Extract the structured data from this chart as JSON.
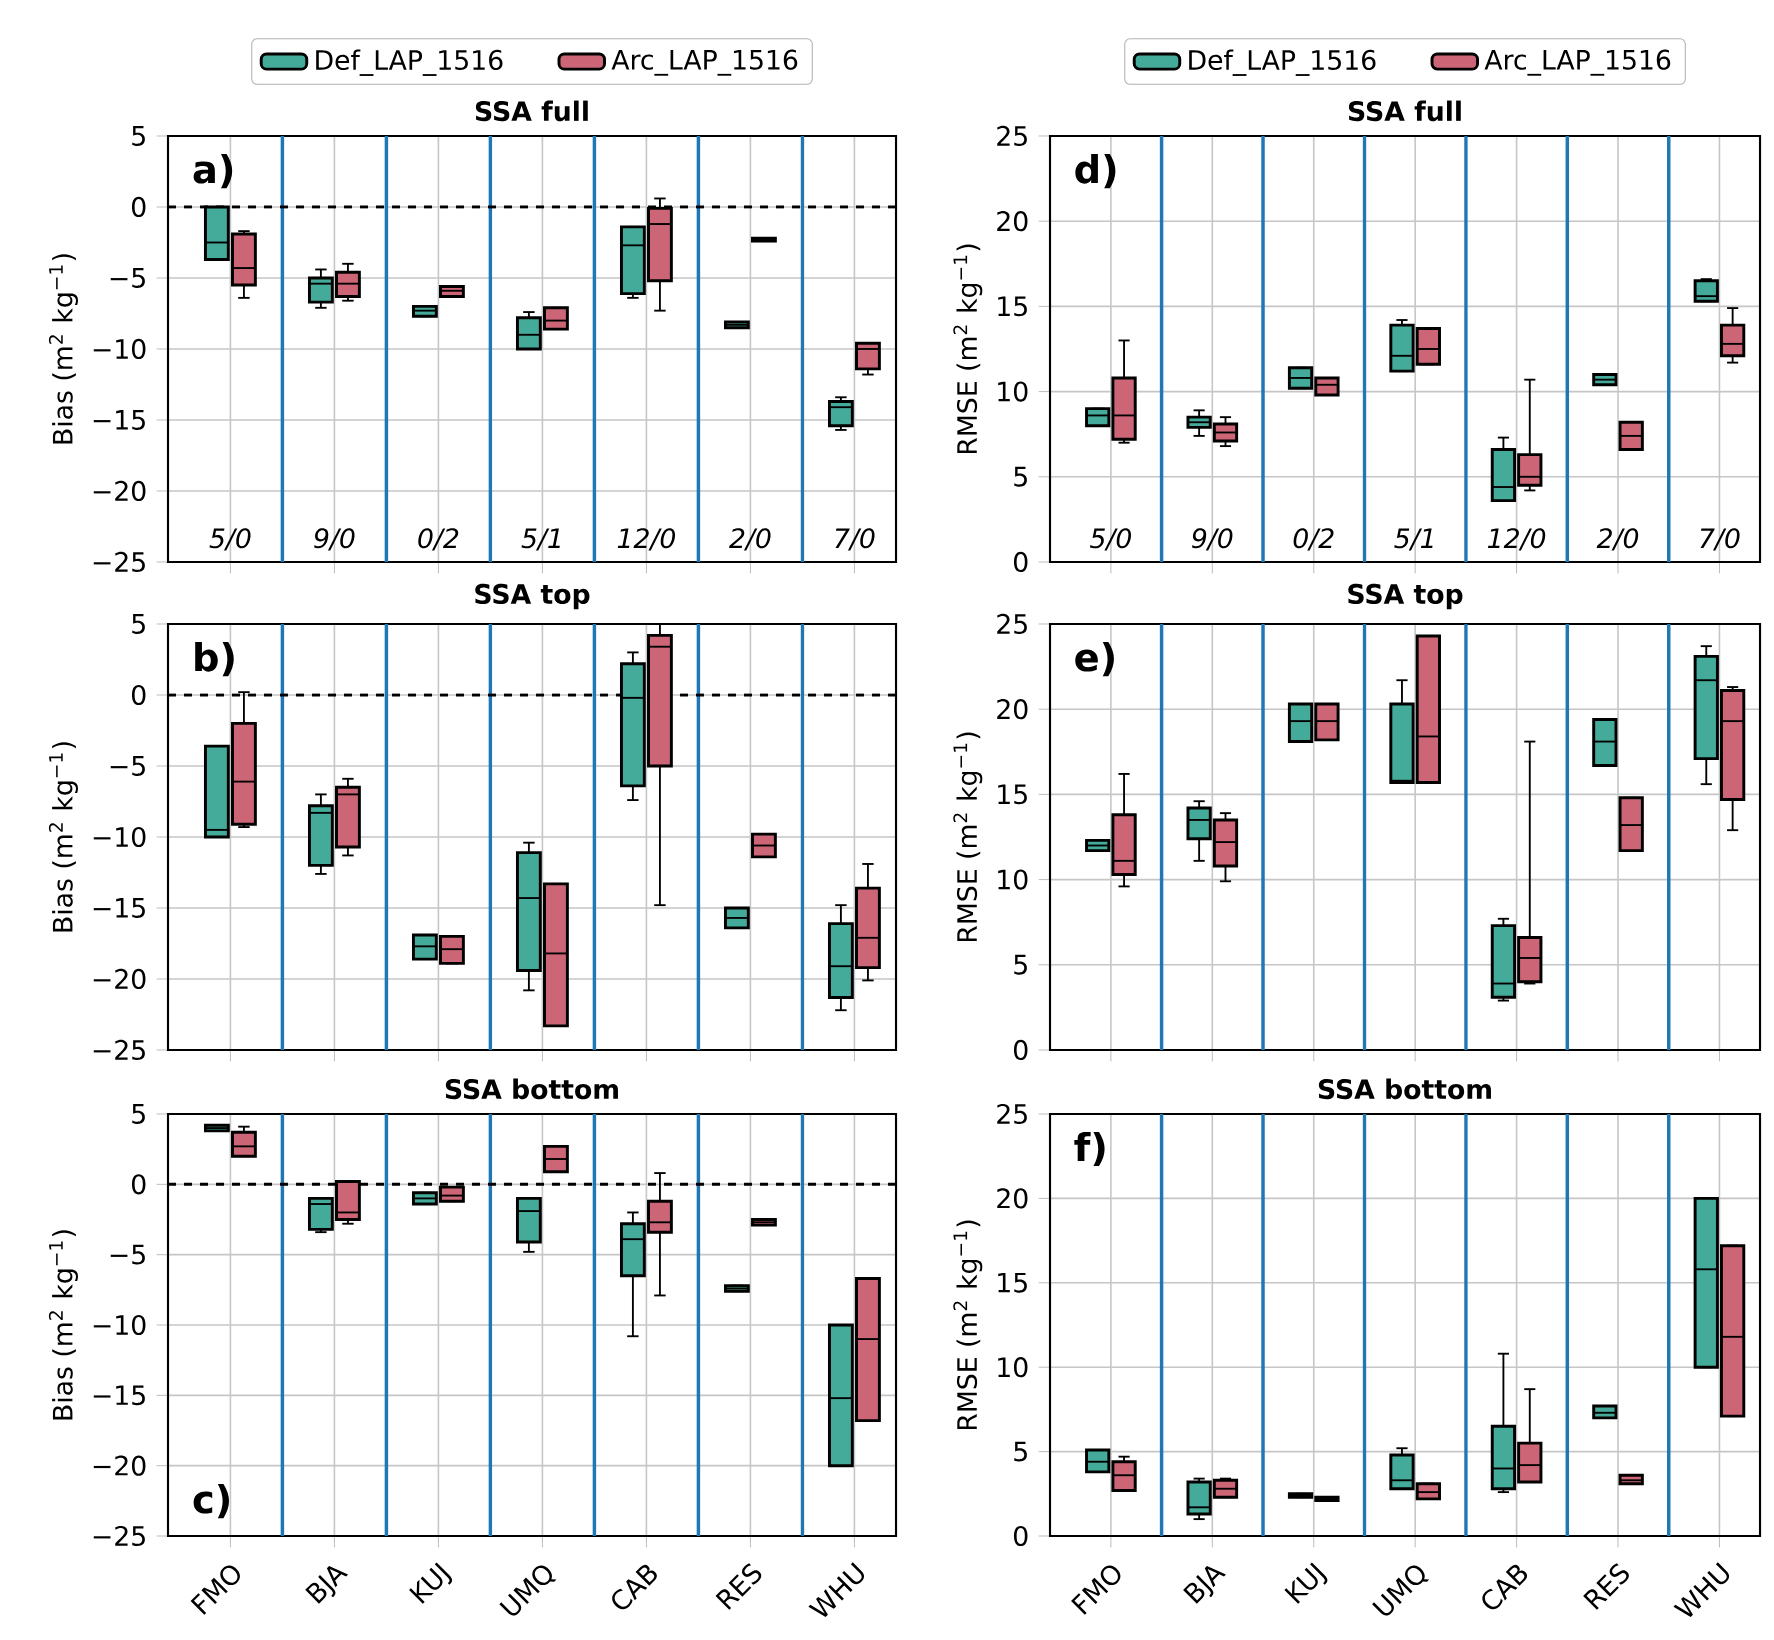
{
  "chart_data": [
    {
      "type": "box",
      "title": "SSA full",
      "ylabel": "Bias (m$^{2}$ kg$^{−1}$)",
      "categories": [
        null,
        null,
        null,
        null,
        null,
        null,
        null
      ],
      "ylim": [
        -25,
        5
      ],
      "yticks": [
        {
          "value": -25,
          "label": "−25"
        },
        {
          "value": -20,
          "label": "−20"
        },
        {
          "value": -15,
          "label": "−15"
        },
        {
          "value": -10,
          "label": "−10"
        },
        {
          "value": -5,
          "label": "−5"
        },
        0,
        5
      ],
      "grid": true,
      "legend": "top",
      "tick_labels": "y",
      "series": [
        {
          "name": "Def_LAP_1516",
          "color": "#44aa99",
          "boxes": [
            {
              "low": -3.7,
              "q1": -3.7,
              "median": -2.5,
              "q3": 0,
              "high": 0
            },
            {
              "low": -7.1,
              "q1": -6.7,
              "median": -5.4,
              "q3": -5.0,
              "high": -4.4
            },
            {
              "low": -7.7,
              "q1": -7.7,
              "median": -7.3,
              "q3": -7.0,
              "high": -7.0
            },
            {
              "low": -10.0,
              "q1": -10.0,
              "median": -9.0,
              "q3": -7.8,
              "high": -7.4
            },
            {
              "low": -6.4,
              "q1": -6.1,
              "median": -2.7,
              "q3": -1.4,
              "high": -1.4
            },
            {
              "low": -8.5,
              "q1": -8.5,
              "median": -8.3,
              "q3": -8.1,
              "high": -8.1
            },
            {
              "low": -15.7,
              "q1": -15.4,
              "median": -14.1,
              "q3": -13.7,
              "high": -13.4
            }
          ]
        },
        {
          "name": "Arc_LAP_1516",
          "color": "#cc6677",
          "boxes": [
            {
              "low": -6.4,
              "q1": -5.5,
              "median": -4.3,
              "q3": -1.9,
              "high": -1.7
            },
            {
              "low": -6.6,
              "q1": -6.3,
              "median": -5.4,
              "q3": -4.6,
              "high": -4.0
            },
            {
              "low": -6.3,
              "q1": -6.3,
              "median": -5.9,
              "q3": -5.6,
              "high": -5.6
            },
            {
              "low": -8.6,
              "q1": -8.6,
              "median": -8.0,
              "q3": -7.1,
              "high": -7.1
            },
            {
              "low": -7.3,
              "q1": -5.2,
              "median": -1.2,
              "q3": -0.1,
              "high": 0.6
            },
            {
              "low": -2.4,
              "q1": -2.4,
              "median": -2.3,
              "q3": -2.2,
              "high": -2.2
            },
            {
              "low": -11.8,
              "q1": -11.4,
              "median": -10.0,
              "q3": -9.6,
              "high": -9.6
            }
          ]
        }
      ],
      "ref_lines": [
        {
          "axis": "y",
          "value": 0,
          "color": "#000000",
          "line_style": "dashed"
        }
      ],
      "annotations": [
        "a)",
        "5/0",
        "9/0",
        "0/2",
        "5/1",
        "12/0",
        "2/0",
        "7/0"
      ]
    },
    {
      "type": "box",
      "title": "SSA full",
      "ylabel": "RMSE (m$^{2}$ kg$^{−1}$)",
      "categories": [
        null,
        null,
        null,
        null,
        null,
        null,
        null
      ],
      "ylim": [
        0,
        25
      ],
      "yticks": [
        0,
        5,
        10,
        15,
        20,
        25
      ],
      "grid": true,
      "legend": "top",
      "tick_labels": "y",
      "series": [
        {
          "name": "Def_LAP_1516",
          "color": "#44aa99",
          "boxes": [
            {
              "low": 8.0,
              "q1": 8.0,
              "median": 8.6,
              "q3": 9.0,
              "high": 9.0
            },
            {
              "low": 7.4,
              "q1": 7.9,
              "median": 8.2,
              "q3": 8.5,
              "high": 8.9
            },
            {
              "low": 10.2,
              "q1": 10.2,
              "median": 10.8,
              "q3": 11.4,
              "high": 11.4
            },
            {
              "low": 11.2,
              "q1": 11.2,
              "median": 12.1,
              "q3": 13.9,
              "high": 14.2
            },
            {
              "low": 3.6,
              "q1": 3.6,
              "median": 4.4,
              "q3": 6.6,
              "high": 7.3
            },
            {
              "low": 10.4,
              "q1": 10.4,
              "median": 10.7,
              "q3": 11.0,
              "high": 11.0
            },
            {
              "low": 15.3,
              "q1": 15.3,
              "median": 15.6,
              "q3": 16.5,
              "high": 16.6
            }
          ]
        },
        {
          "name": "Arc_LAP_1516",
          "color": "#cc6677",
          "boxes": [
            {
              "low": 7.0,
              "q1": 7.2,
              "median": 8.6,
              "q3": 10.8,
              "high": 13.0
            },
            {
              "low": 6.8,
              "q1": 7.1,
              "median": 7.6,
              "q3": 8.1,
              "high": 8.5
            },
            {
              "low": 9.8,
              "q1": 9.8,
              "median": 10.4,
              "q3": 10.8,
              "high": 10.8
            },
            {
              "low": 11.6,
              "q1": 11.6,
              "median": 12.5,
              "q3": 13.7,
              "high": 13.7
            },
            {
              "low": 4.2,
              "q1": 4.5,
              "median": 5.0,
              "q3": 6.3,
              "high": 10.7
            },
            {
              "low": 6.6,
              "q1": 6.6,
              "median": 7.4,
              "q3": 8.2,
              "high": 8.2
            },
            {
              "low": 11.7,
              "q1": 12.1,
              "median": 12.8,
              "q3": 13.9,
              "high": 14.9
            }
          ]
        }
      ],
      "annotations": [
        "d)",
        "5/0",
        "9/0",
        "0/2",
        "5/1",
        "12/0",
        "2/0",
        "7/0"
      ]
    },
    {
      "type": "box",
      "title": "SSA top",
      "ylabel": "Bias (m$^{2}$ kg$^{−1}$)",
      "categories": [
        null,
        null,
        null,
        null,
        null,
        null,
        null
      ],
      "ylim": [
        -25,
        5
      ],
      "yticks": [
        {
          "value": -25,
          "label": "−25"
        },
        {
          "value": -20,
          "label": "−20"
        },
        {
          "value": -15,
          "label": "−15"
        },
        {
          "value": -10,
          "label": "−10"
        },
        {
          "value": -5,
          "label": "−5"
        },
        0,
        5
      ],
      "grid": true,
      "tick_labels": "y",
      "series": [
        {
          "color": "#44aa99",
          "boxes": [
            {
              "low": -10.0,
              "q1": -10.0,
              "median": -9.5,
              "q3": -3.6,
              "high": -3.6
            },
            {
              "low": -12.6,
              "q1": -12.0,
              "median": -8.3,
              "q3": -7.8,
              "high": -7.0
            },
            {
              "low": -18.6,
              "q1": -18.6,
              "median": -17.7,
              "q3": -16.9,
              "high": -16.9
            },
            {
              "low": -20.8,
              "q1": -19.4,
              "median": -14.3,
              "q3": -11.1,
              "high": -10.4
            },
            {
              "low": -7.4,
              "q1": -6.4,
              "median": -0.2,
              "q3": 2.2,
              "high": 3.0
            },
            {
              "low": -16.4,
              "q1": -16.4,
              "median": -15.7,
              "q3": -15.0,
              "high": -15.0
            },
            {
              "low": -22.2,
              "q1": -21.3,
              "median": -19.1,
              "q3": -16.1,
              "high": -14.8
            }
          ]
        },
        {
          "color": "#cc6677",
          "boxes": [
            {
              "low": -9.3,
              "q1": -9.1,
              "median": -6.1,
              "q3": -2.0,
              "high": 0.2
            },
            {
              "low": -11.3,
              "q1": -10.7,
              "median": -7.0,
              "q3": -6.5,
              "high": -5.9
            },
            {
              "low": -18.9,
              "q1": -18.9,
              "median": -17.9,
              "q3": -17.0,
              "high": -17.0
            },
            {
              "low": -23.3,
              "q1": -23.3,
              "median": -18.2,
              "q3": -13.3,
              "high": -13.3
            },
            {
              "low": -14.8,
              "q1": -5.0,
              "median": 3.4,
              "q3": 4.2,
              "high": 5.0
            },
            {
              "low": -11.4,
              "q1": -11.4,
              "median": -10.6,
              "q3": -9.8,
              "high": -9.8
            },
            {
              "low": -20.1,
              "q1": -19.2,
              "median": -17.1,
              "q3": -13.6,
              "high": -11.9
            }
          ]
        }
      ],
      "ref_lines": [
        {
          "axis": "y",
          "value": 0,
          "color": "#000000",
          "line_style": "dashed"
        }
      ],
      "annotations": [
        "b)"
      ]
    },
    {
      "type": "box",
      "title": "SSA top",
      "ylabel": "RMSE (m$^{2}$ kg$^{−1}$)",
      "categories": [
        null,
        null,
        null,
        null,
        null,
        null,
        null
      ],
      "ylim": [
        0,
        25
      ],
      "yticks": [
        0,
        5,
        10,
        15,
        20,
        25
      ],
      "grid": true,
      "tick_labels": "y",
      "series": [
        {
          "color": "#44aa99",
          "boxes": [
            {
              "low": 11.7,
              "q1": 11.7,
              "median": 12.0,
              "q3": 12.3,
              "high": 12.3
            },
            {
              "low": 11.1,
              "q1": 12.4,
              "median": 13.5,
              "q3": 14.2,
              "high": 14.6
            },
            {
              "low": 18.1,
              "q1": 18.1,
              "median": 19.3,
              "q3": 20.3,
              "high": 20.3
            },
            {
              "low": 15.7,
              "q1": 15.7,
              "median": 15.8,
              "q3": 20.3,
              "high": 21.7
            },
            {
              "low": 2.9,
              "q1": 3.1,
              "median": 3.9,
              "q3": 7.3,
              "high": 7.7
            },
            {
              "low": 16.7,
              "q1": 16.7,
              "median": 18.1,
              "q3": 19.4,
              "high": 19.4
            },
            {
              "low": 15.6,
              "q1": 17.1,
              "median": 21.7,
              "q3": 23.1,
              "high": 23.7
            }
          ]
        },
        {
          "color": "#cc6677",
          "boxes": [
            {
              "low": 9.6,
              "q1": 10.3,
              "median": 11.1,
              "q3": 13.8,
              "high": 16.2
            },
            {
              "low": 9.9,
              "q1": 10.8,
              "median": 12.2,
              "q3": 13.5,
              "high": 13.9
            },
            {
              "low": 18.2,
              "q1": 18.2,
              "median": 19.3,
              "q3": 20.3,
              "high": 20.3
            },
            {
              "low": 15.7,
              "q1": 15.7,
              "median": 18.4,
              "q3": 24.3,
              "high": 24.3
            },
            {
              "low": 3.9,
              "q1": 4.0,
              "median": 5.4,
              "q3": 6.6,
              "high": 18.1
            },
            {
              "low": 11.7,
              "q1": 11.7,
              "median": 13.2,
              "q3": 14.8,
              "high": 14.8
            },
            {
              "low": 12.9,
              "q1": 14.7,
              "median": 19.3,
              "q3": 21.1,
              "high": 21.3
            }
          ]
        }
      ],
      "annotations": [
        "e)"
      ]
    },
    {
      "type": "box",
      "title": "SSA bottom",
      "ylabel": "Bias (m$^{2}$ kg$^{−1}$)",
      "categories": [
        "FMO",
        "BJA",
        "KUJ",
        "UMQ",
        "CAB",
        "RES",
        "WHU"
      ],
      "ylim": [
        -25,
        5
      ],
      "yticks": [
        {
          "value": -25,
          "label": "−25"
        },
        {
          "value": -20,
          "label": "−20"
        },
        {
          "value": -15,
          "label": "−15"
        },
        {
          "value": -10,
          "label": "−10"
        },
        {
          "value": -5,
          "label": "−5"
        },
        0,
        5
      ],
      "grid": true,
      "series": [
        {
          "color": "#44aa99",
          "boxes": [
            {
              "low": 3.8,
              "q1": 3.8,
              "median": 4.0,
              "q3": 4.2,
              "high": 4.2
            },
            {
              "low": -3.4,
              "q1": -3.2,
              "median": -1.4,
              "q3": -1.0,
              "high": -1.0
            },
            {
              "low": -1.4,
              "q1": -1.4,
              "median": -1.0,
              "q3": -0.6,
              "high": -0.6
            },
            {
              "low": -4.8,
              "q1": -4.1,
              "median": -1.9,
              "q3": -1.0,
              "high": -1.0
            },
            {
              "low": -10.8,
              "q1": -6.5,
              "median": -3.9,
              "q3": -2.8,
              "high": -2.0
            },
            {
              "low": -7.6,
              "q1": -7.6,
              "median": -7.4,
              "q3": -7.2,
              "high": -7.2
            },
            {
              "low": -20.0,
              "q1": -20.0,
              "median": -15.2,
              "q3": -10.0,
              "high": -10.0
            }
          ]
        },
        {
          "color": "#cc6677",
          "boxes": [
            {
              "low": 2.0,
              "q1": 2.0,
              "median": 2.7,
              "q3": 3.7,
              "high": 4.1
            },
            {
              "low": -2.8,
              "q1": -2.5,
              "median": -2.0,
              "q3": 0.2,
              "high": 0.2
            },
            {
              "low": -1.2,
              "q1": -1.2,
              "median": -0.8,
              "q3": -0.2,
              "high": -0.2
            },
            {
              "low": 0.9,
              "q1": 0.9,
              "median": 1.8,
              "q3": 2.7,
              "high": 2.7
            },
            {
              "low": -7.9,
              "q1": -3.4,
              "median": -2.7,
              "q3": -1.2,
              "high": 0.8
            },
            {
              "low": -2.9,
              "q1": -2.9,
              "median": -2.7,
              "q3": -2.5,
              "high": -2.5
            },
            {
              "low": -16.8,
              "q1": -16.8,
              "median": -11.0,
              "q3": -6.7,
              "high": -6.7
            }
          ]
        }
      ],
      "ref_lines": [
        {
          "axis": "y",
          "value": 0,
          "color": "#000000",
          "line_style": "dashed"
        }
      ],
      "annotations": [
        "c)"
      ]
    },
    {
      "type": "box",
      "title": "SSA bottom",
      "ylabel": "RMSE (m$^{2}$ kg$^{−1}$)",
      "categories": [
        "FMO",
        "BJA",
        "KUJ",
        "UMQ",
        "CAB",
        "RES",
        "WHU"
      ],
      "ylim": [
        0,
        25
      ],
      "yticks": [
        0,
        5,
        10,
        15,
        20,
        25
      ],
      "grid": true,
      "series": [
        {
          "color": "#44aa99",
          "boxes": [
            {
              "low": 3.8,
              "q1": 3.8,
              "median": 4.4,
              "q3": 5.1,
              "high": 5.1
            },
            {
              "low": 1.0,
              "q1": 1.3,
              "median": 1.7,
              "q3": 3.2,
              "high": 3.4
            },
            {
              "low": 2.3,
              "q1": 2.3,
              "median": 2.4,
              "q3": 2.5,
              "high": 2.5
            },
            {
              "low": 2.8,
              "q1": 2.8,
              "median": 3.3,
              "q3": 4.8,
              "high": 5.2
            },
            {
              "low": 2.6,
              "q1": 2.8,
              "median": 4.0,
              "q3": 6.5,
              "high": 10.8
            },
            {
              "low": 7.0,
              "q1": 7.0,
              "median": 7.3,
              "q3": 7.7,
              "high": 7.7
            },
            {
              "low": 10.0,
              "q1": 10.0,
              "median": 15.8,
              "q3": 20.0,
              "high": 20.0
            }
          ]
        },
        {
          "color": "#cc6677",
          "boxes": [
            {
              "low": 2.7,
              "q1": 2.7,
              "median": 3.6,
              "q3": 4.4,
              "high": 4.7
            },
            {
              "low": 2.3,
              "q1": 2.3,
              "median": 2.8,
              "q3": 3.3,
              "high": 3.4
            },
            {
              "low": 2.1,
              "q1": 2.1,
              "median": 2.2,
              "q3": 2.3,
              "high": 2.3
            },
            {
              "low": 2.2,
              "q1": 2.2,
              "median": 2.6,
              "q3": 3.1,
              "high": 3.1
            },
            {
              "low": 3.2,
              "q1": 3.2,
              "median": 4.2,
              "q3": 5.5,
              "high": 8.7
            },
            {
              "low": 3.1,
              "q1": 3.1,
              "median": 3.3,
              "q3": 3.6,
              "high": 3.6
            },
            {
              "low": 7.1,
              "q1": 7.1,
              "median": 11.8,
              "q3": 17.2,
              "high": 17.2
            }
          ]
        }
      ],
      "annotations": [
        "f)"
      ]
    }
  ]
}
